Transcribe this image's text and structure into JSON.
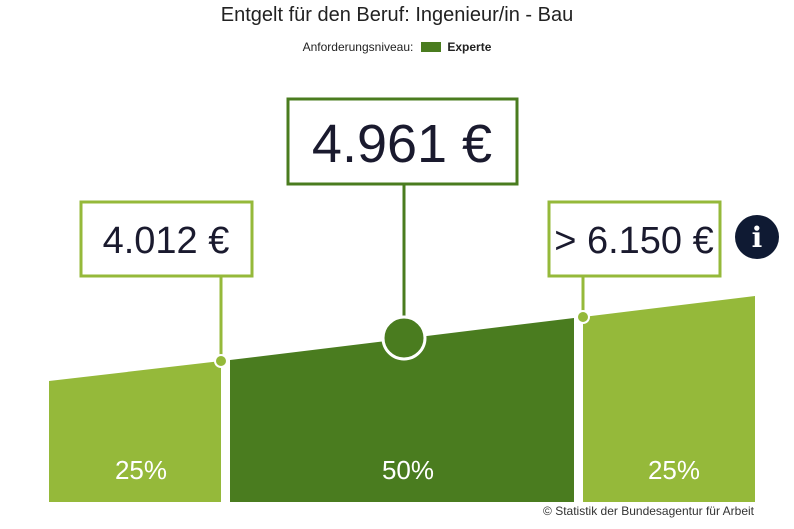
{
  "title": "Entgelt für den Beruf: Ingenieur/in - Bau",
  "legend": {
    "label": "Anforderungsniveau:",
    "value": "Experte",
    "color": "#4a7c1f"
  },
  "chart_data": {
    "type": "area",
    "title": "Entgelt für den Beruf: Ingenieur/in - Bau",
    "segments": [
      {
        "label": "25%",
        "share": 25,
        "color": "#95b93a"
      },
      {
        "label": "50%",
        "share": 50,
        "color": "#4a7c1f"
      },
      {
        "label": "25%",
        "share": 25,
        "color": "#95b93a"
      }
    ],
    "markers": [
      {
        "name": "lower-quartile",
        "value": 4012,
        "label": "4.012 €"
      },
      {
        "name": "median",
        "value": 4961,
        "label": "4.961 €"
      },
      {
        "name": "upper-quartile",
        "value": 6150,
        "label": "> 6.150 €"
      }
    ],
    "colors": {
      "light": "#95b93a",
      "dark": "#4a7c1f",
      "info": "#0f1a33"
    }
  },
  "info_icon": "info-icon",
  "source": "© Statistik der Bundesagentur für Arbeit"
}
